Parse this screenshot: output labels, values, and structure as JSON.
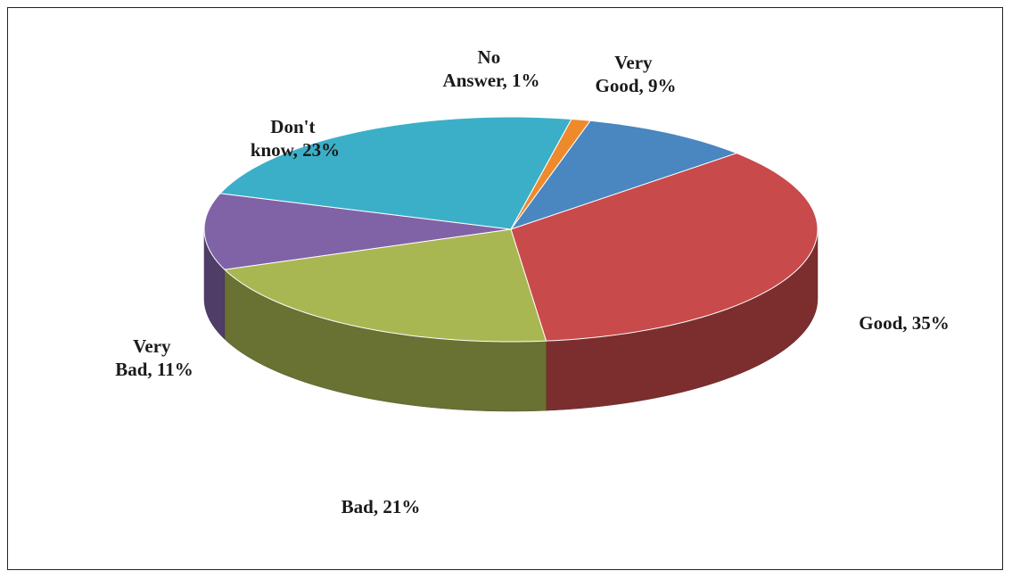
{
  "chart_data": {
    "type": "pie",
    "three_d": true,
    "title": "",
    "legend": "none",
    "slices": [
      {
        "label": "Very Good",
        "value": 9,
        "display": "9%",
        "color": "#4a86c0"
      },
      {
        "label": "Good",
        "value": 35,
        "display": "35%",
        "color": "#c84a4a"
      },
      {
        "label": "Bad",
        "value": 21,
        "display": "21%",
        "color": "#a9b753"
      },
      {
        "label": "Very Bad",
        "value": 11,
        "display": "11%",
        "color": "#8063a6"
      },
      {
        "label": "Don't know",
        "value": 23,
        "display": "23%",
        "color": "#3bafc8"
      },
      {
        "label": "No Answer",
        "value": 1,
        "display": "1%",
        "color": "#ef8a2c"
      }
    ]
  }
}
